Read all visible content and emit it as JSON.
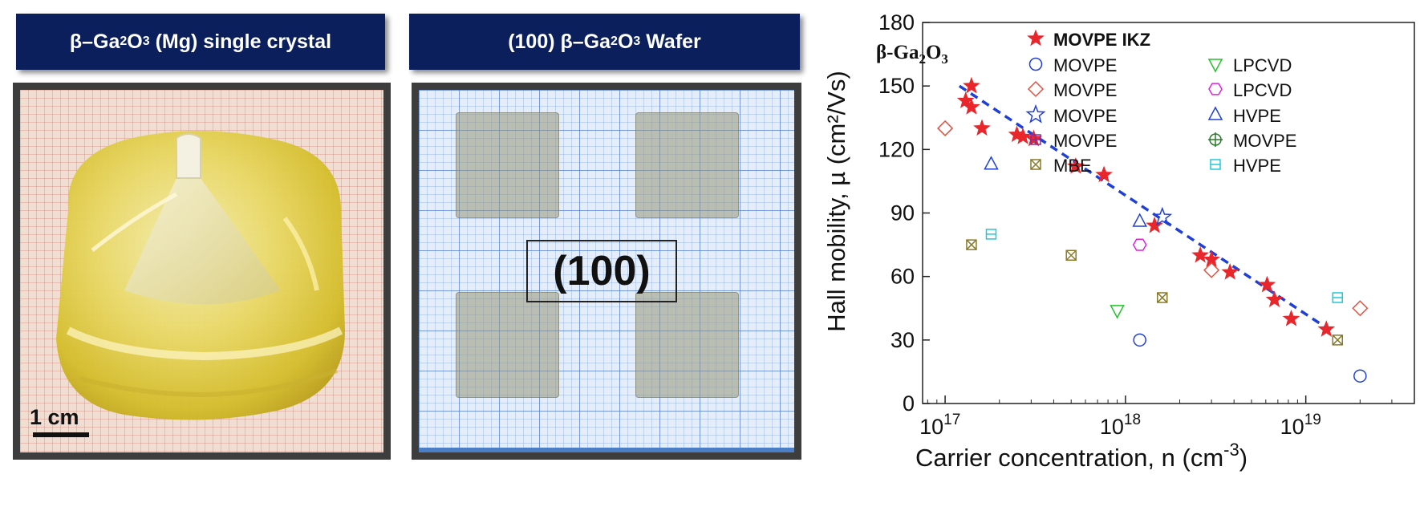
{
  "figure": {
    "left_banner": {
      "pre": "β–Ga",
      "sub1": "2",
      "mid": "O",
      "sub2": "3",
      "post": " (Mg) single crystal"
    },
    "right_banner": {
      "pre": "(100) β–Ga",
      "sub1": "2",
      "mid": "O",
      "sub2": "3",
      "post": " Wafer"
    },
    "crystal_photo": {
      "scale_label": "1 cm"
    },
    "wafer_photo": {
      "orientation_label": "(100)"
    }
  },
  "chart_data": {
    "type": "scatter",
    "inset_label": {
      "text": "β-Ga",
      "sub1": "2",
      "mid": "O",
      "sub2": "3"
    },
    "xlabel": {
      "text": "Carrier concentration, n (cm",
      "sup": "-3",
      "close": ")"
    },
    "ylabel": "Hall mobility, µ (cm²/Vs)",
    "x_scale": "log",
    "xlim": [
      7.5e+16,
      4e+19
    ],
    "ylim": [
      0,
      180
    ],
    "y_ticks": [
      0,
      30,
      60,
      90,
      120,
      150,
      180
    ],
    "x_ticks": [
      {
        "value": 1e+17,
        "base": "10",
        "exp": "17"
      },
      {
        "value": 1e+18,
        "base": "10",
        "exp": "18"
      },
      {
        "value": 1e+19,
        "base": "10",
        "exp": "19"
      }
    ],
    "legend_position": "top-right",
    "series": [
      {
        "name": "MOVPE IKZ",
        "marker": "star-filled",
        "color": "#e8262b",
        "bold": true,
        "points": [
          [
            1.3e+17,
            143
          ],
          [
            1.4e+17,
            140
          ],
          [
            1.4e+17,
            150
          ],
          [
            1.6e+17,
            130
          ],
          [
            2.5e+17,
            127
          ],
          [
            2.7e+17,
            126
          ],
          [
            3.1e+17,
            125
          ],
          [
            5.3e+17,
            112
          ],
          [
            7.6e+17,
            108
          ],
          [
            1.45e+18,
            84
          ],
          [
            2.6e+18,
            70
          ],
          [
            3e+18,
            68
          ],
          [
            3.8e+18,
            62
          ],
          [
            6.1e+18,
            56
          ],
          [
            6.7e+18,
            49
          ],
          [
            8.3e+18,
            40
          ],
          [
            1.3e+19,
            35
          ]
        ]
      },
      {
        "name": "MOVPE",
        "marker": "circle",
        "color": "#1f3fd6",
        "points": [
          [
            1.2e+18,
            30
          ],
          [
            2e+19,
            13
          ]
        ]
      },
      {
        "name": "MOVPE",
        "marker": "diamond",
        "color": "#e05040",
        "points": [
          [
            1e+17,
            130
          ],
          [
            3e+18,
            63
          ],
          [
            2e+19,
            45
          ]
        ]
      },
      {
        "name": "MOVPE",
        "marker": "star-open",
        "color": "#1f3fd6",
        "points": [
          [
            1.6e+18,
            88
          ]
        ]
      },
      {
        "name": "MOVPE",
        "marker": "square-plus",
        "color": "#8a2a9a",
        "points": []
      },
      {
        "name": "MBE",
        "marker": "square-x",
        "color": "#8a7a2a",
        "points": [
          [
            1.4e+17,
            75
          ],
          [
            5e+17,
            70
          ],
          [
            1.6e+18,
            50
          ],
          [
            1.5e+19,
            30
          ]
        ]
      },
      {
        "name": "LPCVD",
        "marker": "triangle-down",
        "color": "#22c22a",
        "points": [
          [
            9e+17,
            44
          ]
        ]
      },
      {
        "name": "LPCVD",
        "marker": "hexagon",
        "color": "#e020e0",
        "points": [
          [
            1.2e+18,
            75
          ]
        ]
      },
      {
        "name": "HVPE",
        "marker": "triangle-up",
        "color": "#1f3fd6",
        "points": [
          [
            1.8e+17,
            113
          ],
          [
            1.2e+18,
            86
          ]
        ]
      },
      {
        "name": "MOVPE",
        "marker": "circle-plus",
        "color": "#2a7a2a",
        "points": []
      },
      {
        "name": "HVPE",
        "marker": "square-line",
        "color": "#20c8d8",
        "points": [
          [
            1.8e+17,
            80
          ],
          [
            1.5e+19,
            50
          ]
        ]
      }
    ],
    "fit_line": {
      "style": "dashed",
      "color": "#1f3fd6",
      "points": [
        [
          1.2e+17,
          150
        ],
        [
          1.4e+19,
          34
        ]
      ]
    }
  }
}
